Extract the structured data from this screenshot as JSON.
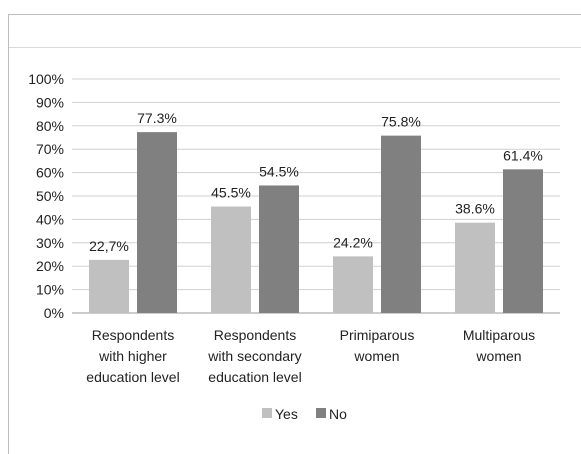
{
  "chart_data": {
    "type": "bar",
    "title": "",
    "xlabel": "",
    "ylabel": "",
    "ylim": [
      0,
      100
    ],
    "y_ticks": [
      "0%",
      "10%",
      "20%",
      "30%",
      "40%",
      "50%",
      "60%",
      "70%",
      "80%",
      "90%",
      "100%"
    ],
    "grid": true,
    "legend_position": "bottom",
    "categories": [
      [
        "Respondents",
        "with higher",
        "education level"
      ],
      [
        "Respondents",
        "with secondary",
        "education level"
      ],
      [
        "Primiparous",
        "women"
      ],
      [
        "Multiparous",
        "women"
      ]
    ],
    "series": [
      {
        "name": "Yes",
        "color": "#c0c0c0",
        "values": [
          22.7,
          45.5,
          24.2,
          38.6
        ],
        "labels": [
          "22,7%",
          "45.5%",
          "24.2%",
          "38.6%"
        ]
      },
      {
        "name": "No",
        "color": "#808080",
        "values": [
          77.3,
          54.5,
          75.8,
          61.4
        ],
        "labels": [
          "77.3%",
          "54.5%",
          "75.8%",
          "61.4%"
        ]
      }
    ]
  }
}
